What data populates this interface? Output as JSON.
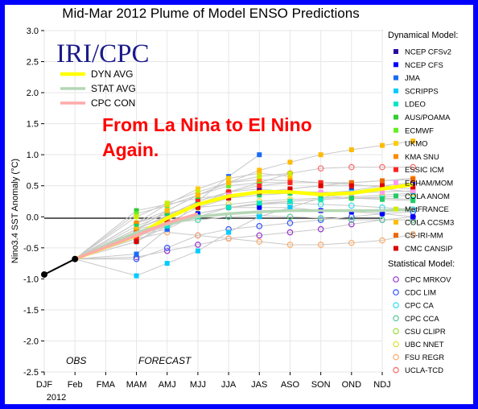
{
  "chart_data": {
    "type": "line",
    "title": "Mid-Mar 2012 Plume of Model ENSO Predictions",
    "ylabel": "Nino3.4 SST Anomaly (°C)",
    "xlabel": "",
    "categories": [
      "DJF",
      "Feb",
      "FMA",
      "MAM",
      "AMJ",
      "MJJ",
      "JJA",
      "JAS",
      "ASO",
      "SON",
      "OND",
      "NDJ"
    ],
    "year_label": "2012",
    "ylim": [
      -2.5,
      3.0
    ],
    "yticks": [
      "3.0",
      "2.5",
      "2.0",
      "1.5",
      "1.0",
      "0.5",
      "0.0",
      "-0.5",
      "-1.0",
      "-1.5",
      "-2.0",
      "-2.5"
    ],
    "phase_obs": "OBS",
    "phase_forecast": "FORECAST",
    "brand": "IRI/CPC",
    "annotation_line1": "From La Nina to El Nino",
    "annotation_line2": "Again.",
    "observed": {
      "x": [
        "DJF",
        "Feb"
      ],
      "values": [
        -0.93,
        -0.68
      ],
      "color": "#000000"
    },
    "averages": [
      {
        "name": "DYN AVG",
        "color": "#ffff00",
        "values": [
          -0.3,
          -0.02,
          0.2,
          0.33,
          0.4,
          0.4,
          0.36,
          0.38,
          0.45,
          0.52
        ]
      },
      {
        "name": "STAT AVG",
        "color": "#b5d6b5",
        "values": [
          -0.25,
          -0.12,
          0.0,
          0.05,
          0.08,
          0.1,
          0.1,
          0.1,
          0.1,
          0.12
        ]
      },
      {
        "name": "CPC CON",
        "color": "#ffaaaa",
        "values": [
          -0.3,
          -0.1,
          0.05
        ]
      }
    ],
    "legend_dynamical_title": "Dynamical Model:",
    "legend_statistical_title": "Statistical Model:",
    "dynamical": [
      {
        "name": "NCEP CFSv2",
        "color": "#2a0aa0",
        "values": [
          -0.2,
          0.02,
          0.25,
          0.4,
          0.45,
          0.4,
          0.38,
          0.42,
          0.5,
          0.55
        ]
      },
      {
        "name": "NCEP CFS",
        "color": "#0000ff",
        "values": [
          -0.3,
          -0.2,
          0.05,
          0.15,
          0.15,
          0.15,
          0.1,
          0.08,
          0.05,
          0.0
        ]
      },
      {
        "name": "JMA",
        "color": "#1b6bf5",
        "values": [
          -0.6,
          -0.2,
          0.25,
          0.65,
          1.0
        ]
      },
      {
        "name": "SCRIPPS",
        "color": "#00ccff",
        "values": [
          -0.95,
          -0.75,
          -0.55,
          -0.25,
          0.0,
          0.15,
          0.3,
          0.4,
          0.45,
          0.4
        ]
      },
      {
        "name": "LDEO",
        "color": "#00e6c8",
        "values": [
          -0.3,
          -0.15,
          0.0,
          0.15,
          0.22,
          0.25,
          0.28,
          0.3,
          0.3,
          0.28
        ]
      },
      {
        "name": "AUS/POAMA",
        "color": "#33cc33",
        "values": [
          0.1,
          0.2,
          0.3,
          0.35,
          0.38,
          0.4
        ]
      },
      {
        "name": "ECMWF",
        "color": "#66ee22",
        "values": [
          0.05,
          0.18,
          0.35,
          0.5,
          0.55,
          0.55
        ]
      },
      {
        "name": "UKMO",
        "color": "#ffcc00",
        "values": [
          -0.1,
          0.2,
          0.45,
          0.62,
          0.7,
          0.65
        ]
      },
      {
        "name": "KMA SNU",
        "color": "#ff8800",
        "values": [
          -0.1,
          0.1,
          0.35,
          0.55,
          0.6,
          0.58,
          0.55,
          0.55,
          0.58,
          0.62
        ]
      },
      {
        "name": "ESSIC ICM",
        "color": "#ff2222",
        "values": [
          -0.35,
          -0.05,
          0.25,
          0.4,
          0.5,
          0.55,
          0.55,
          0.52,
          0.48,
          0.45
        ]
      },
      {
        "name": "ECHAM/MOM",
        "color": "#ff99ee",
        "values": [
          -0.2,
          0.0,
          0.2,
          0.35,
          0.4,
          0.4,
          0.4,
          0.38,
          0.4,
          0.42
        ]
      },
      {
        "name": "COLA ANOM",
        "color": "#22cc66",
        "values": [
          -0.15,
          0.05,
          0.2,
          0.3,
          0.35,
          0.38,
          0.35,
          0.3,
          0.28,
          0.26
        ]
      },
      {
        "name": "MetFRANCE",
        "color": "#ccee00",
        "values": [
          0.0,
          0.22,
          0.4,
          0.55,
          0.65,
          0.7
        ]
      },
      {
        "name": "COLA CCSM3",
        "color": "#ffbb00",
        "values": [
          -0.2,
          0.1,
          0.35,
          0.55,
          0.75,
          0.88,
          1.0,
          1.08,
          1.15,
          1.22
        ]
      },
      {
        "name": "CS-IRI-MM",
        "color": "#ee6600",
        "values": [
          -0.25,
          -0.05,
          0.18,
          0.32,
          0.4,
          0.45,
          0.5,
          0.55,
          0.58,
          0.6
        ]
      },
      {
        "name": "CMC CANSIP",
        "color": "#dd0000",
        "values": [
          -0.4,
          -0.1,
          0.15,
          0.3,
          0.4,
          0.45,
          0.5,
          0.5,
          0.5,
          0.48
        ]
      }
    ],
    "statistical": [
      {
        "name": "CPC MRKOV",
        "color": "#9933cc",
        "values": [
          -0.65,
          -0.55,
          -0.45,
          -0.35,
          -0.3,
          -0.25,
          -0.2,
          -0.12,
          -0.05,
          0.0
        ]
      },
      {
        "name": "CDC LIM",
        "color": "#3355ff",
        "values": [
          -0.68,
          -0.5,
          -0.3,
          -0.2,
          -0.15,
          -0.1,
          -0.05,
          0.0,
          0.05,
          0.08
        ]
      },
      {
        "name": "CPC CA",
        "color": "#33ddee",
        "values": [
          -0.4,
          -0.15,
          0.05,
          0.15,
          0.2,
          0.22,
          0.2,
          0.18,
          0.15,
          0.12
        ]
      },
      {
        "name": "CPC CCA",
        "color": "#55cc99",
        "values": [
          -0.2,
          -0.1,
          -0.05,
          0.0,
          0.02,
          0.0,
          -0.02,
          -0.05,
          -0.05,
          -0.05
        ]
      },
      {
        "name": "CSU CLIPR",
        "color": "#99dd33",
        "values": [
          -0.25,
          -0.1,
          0.05,
          0.15,
          0.2,
          0.25,
          0.28,
          0.3,
          0.32,
          0.35
        ]
      },
      {
        "name": "UBC NNET",
        "color": "#dddd33",
        "values": [
          -0.1,
          0.05,
          0.15,
          0.2,
          0.25,
          0.28,
          0.3,
          0.32,
          0.35,
          0.38
        ]
      },
      {
        "name": "FSU REGR",
        "color": "#ffaa66",
        "values": [
          -0.35,
          -0.25,
          -0.3,
          -0.35,
          -0.4,
          -0.45,
          -0.45,
          -0.42,
          -0.38,
          -0.28
        ]
      },
      {
        "name": "UCLA-TCD",
        "color": "#ff6666",
        "values": [
          -0.25,
          -0.05,
          0.2,
          0.4,
          0.55,
          0.7,
          0.78,
          0.8,
          0.8,
          0.8
        ]
      }
    ]
  }
}
